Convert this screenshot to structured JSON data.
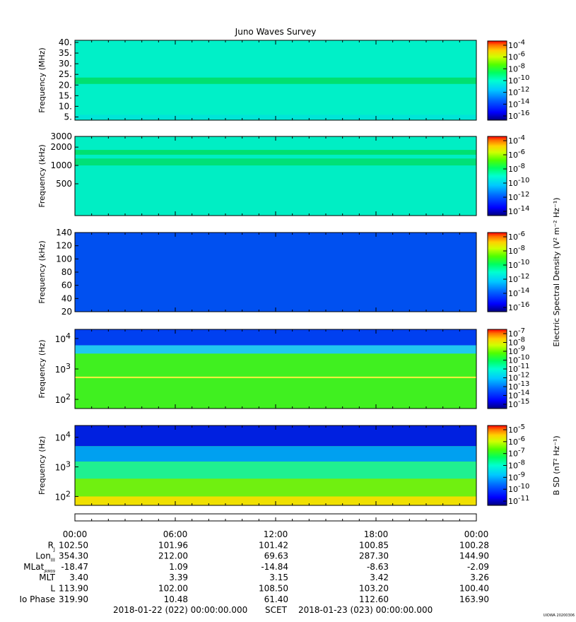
{
  "chart_data": {
    "type": "heatmap",
    "title": "Juno Waves Survey",
    "colormap": [
      "#000080",
      "#0000ff",
      "#0064ff",
      "#00c8ff",
      "#00ffd0",
      "#00ff60",
      "#50ff00",
      "#d0ff00",
      "#ffd000",
      "#ff7000",
      "#ff0000"
    ],
    "grid": false,
    "x_time_range": [
      "2018-01-22 00:00",
      "2018-01-23 00:00"
    ],
    "panels": [
      {
        "id": "hfwbr",
        "ylabel": "Frequency (MHz)",
        "yscale": "linear",
        "ylim": [
          3.5,
          41
        ],
        "yticks": [
          {
            "v": 40,
            "t": "40."
          },
          {
            "v": 35,
            "t": "35."
          },
          {
            "v": 30,
            "t": "30."
          },
          {
            "v": 25,
            "t": "25."
          },
          {
            "v": 20,
            "t": "20."
          },
          {
            "v": 15,
            "t": "15."
          },
          {
            "v": 10,
            "t": "10."
          },
          {
            "v": 5,
            "t": "5."
          }
        ],
        "cbar_label": "",
        "cbar_ticks": [
          {
            "b": "10",
            "e": "-4"
          },
          {
            "b": "10",
            "e": "-6"
          },
          {
            "b": "10",
            "e": "-8"
          },
          {
            "b": "10",
            "e": "-10"
          },
          {
            "b": "10",
            "e": "-12"
          },
          {
            "b": "10",
            "e": "-14"
          },
          {
            "b": "10",
            "e": "-16"
          }
        ],
        "bg": "#00f0c8",
        "bands": [
          {
            "y0": 20.5,
            "y1": 23.5,
            "color": "#00e070"
          },
          {
            "y0": 4,
            "y1": 6,
            "color": "#00e4d8"
          }
        ]
      },
      {
        "id": "hfr",
        "ylabel": "Frequency (kHz)",
        "yscale": "log",
        "ylim": [
          150,
          3000
        ],
        "yticks": [
          {
            "v": 3000,
            "t": "3000"
          },
          {
            "v": 2000,
            "t": "2000"
          },
          {
            "v": 1000,
            "t": "1000"
          },
          {
            "v": 500,
            "t": "500"
          }
        ],
        "cbar_label": "",
        "cbar_ticks": [
          {
            "b": "10",
            "e": "-4"
          },
          {
            "b": "10",
            "e": "-6"
          },
          {
            "b": "10",
            "e": "-8"
          },
          {
            "b": "10",
            "e": "-10"
          },
          {
            "b": "10",
            "e": "-12"
          },
          {
            "b": "10",
            "e": "-14"
          }
        ],
        "bg": "#00eec4",
        "bands": [
          {
            "y0": 1500,
            "y1": 1800,
            "color": "#00e070"
          },
          {
            "y0": 1000,
            "y1": 1300,
            "color": "#00e078"
          }
        ]
      },
      {
        "id": "lfrhi",
        "ylabel": "Frequency (kHz)",
        "yscale": "linear",
        "ylim": [
          20,
          140
        ],
        "yticks": [
          {
            "v": 140,
            "t": "140"
          },
          {
            "v": 120,
            "t": "120"
          },
          {
            "v": 100,
            "t": "100"
          },
          {
            "v": 80,
            "t": "80"
          },
          {
            "v": 60,
            "t": "60"
          },
          {
            "v": 40,
            "t": "40"
          },
          {
            "v": 20,
            "t": "20"
          }
        ],
        "cbar_label": "Electric Spectral Density (V² m⁻² Hz⁻¹)",
        "cbar_ticks": [
          {
            "b": "10",
            "e": "-6"
          },
          {
            "b": "10",
            "e": "-8"
          },
          {
            "b": "10",
            "e": "-10"
          },
          {
            "b": "10",
            "e": "-12"
          },
          {
            "b": "10",
            "e": "-14"
          },
          {
            "b": "10",
            "e": "-16"
          }
        ],
        "bg": "#0050f0",
        "bands": []
      },
      {
        "id": "lfrlo",
        "ylabel": "Frequency (Hz)",
        "yscale": "log",
        "ylim": [
          50,
          20000
        ],
        "yticks": [
          {
            "v": 10000,
            "b": "10",
            "e": "4"
          },
          {
            "v": 1000,
            "b": "10",
            "e": "3"
          },
          {
            "v": 100,
            "b": "10",
            "e": "2"
          }
        ],
        "cbar_label": "",
        "cbar_ticks": [
          {
            "b": "10",
            "e": "-7"
          },
          {
            "b": "10",
            "e": "-8"
          },
          {
            "b": "10",
            "e": "-9"
          },
          {
            "b": "10",
            "e": "-10"
          },
          {
            "b": "10",
            "e": "-11"
          },
          {
            "b": "10",
            "e": "-12"
          },
          {
            "b": "10",
            "e": "-13"
          },
          {
            "b": "10",
            "e": "-14"
          },
          {
            "b": "10",
            "e": "-15"
          }
        ],
        "bg": "#40f020",
        "bands": [
          {
            "y0": 6000,
            "y1": 20000,
            "color": "#0040f0"
          },
          {
            "y0": 3200,
            "y1": 6000,
            "color": "#20c8f0"
          },
          {
            "y0": 500,
            "y1": 560,
            "color": "#f0f040"
          }
        ]
      },
      {
        "id": "mag",
        "ylabel": "Frequency (Hz)",
        "yscale": "log",
        "ylim": [
          50,
          25000
        ],
        "yticks": [
          {
            "v": 10000,
            "b": "10",
            "e": "4"
          },
          {
            "v": 1000,
            "b": "10",
            "e": "3"
          },
          {
            "v": 100,
            "b": "10",
            "e": "2"
          }
        ],
        "cbar_label": "B SD (nT² Hz⁻¹)",
        "cbar_ticks": [
          {
            "b": "10",
            "e": "-5"
          },
          {
            "b": "10",
            "e": "-6"
          },
          {
            "b": "10",
            "e": "-7"
          },
          {
            "b": "10",
            "e": "-8"
          },
          {
            "b": "10",
            "e": "-9"
          },
          {
            "b": "10",
            "e": "-10"
          },
          {
            "b": "10",
            "e": "-11"
          }
        ],
        "bg": "#70f010",
        "bands": [
          {
            "y0": 5000,
            "y1": 25000,
            "color": "#0020e0"
          },
          {
            "y0": 1500,
            "y1": 5000,
            "color": "#00a0f0"
          },
          {
            "y0": 400,
            "y1": 1500,
            "color": "#20f090"
          },
          {
            "y0": 50,
            "y1": 100,
            "color": "#f0e000"
          }
        ]
      }
    ],
    "ephemeris": {
      "labels": [
        {
          "main": "R",
          "sub": "J"
        },
        {
          "main": "Lon",
          "sub": "III"
        },
        {
          "main": "MLat",
          "sub": "JRM09"
        },
        {
          "main": "MLT",
          "sub": ""
        },
        {
          "main": "L",
          "sub": ""
        },
        {
          "main": "Io Phase",
          "sub": ""
        }
      ],
      "columns": [
        {
          "time": "00:00",
          "values": [
            "102.50",
            "354.30",
            "-18.47",
            "3.40",
            "113.90",
            "319.90"
          ]
        },
        {
          "time": "06:00",
          "values": [
            "101.96",
            "212.00",
            "1.09",
            "3.39",
            "102.00",
            "10.48"
          ]
        },
        {
          "time": "12:00",
          "values": [
            "101.42",
            "69.63",
            "-14.84",
            "3.15",
            "108.50",
            "61.40"
          ]
        },
        {
          "time": "18:00",
          "values": [
            "100.85",
            "287.30",
            "-8.63",
            "3.42",
            "103.20",
            "112.60"
          ]
        },
        {
          "time": "00:00",
          "values": [
            "100.28",
            "144.90",
            "-2.09",
            "3.26",
            "100.40",
            "163.90"
          ]
        }
      ]
    },
    "footer": {
      "start": "2018-01-22 (022) 00:00:00.000",
      "scet": "SCET",
      "end": "2018-01-23 (023) 00:00:00.000",
      "stamp": "UIOWA 20200306"
    }
  }
}
